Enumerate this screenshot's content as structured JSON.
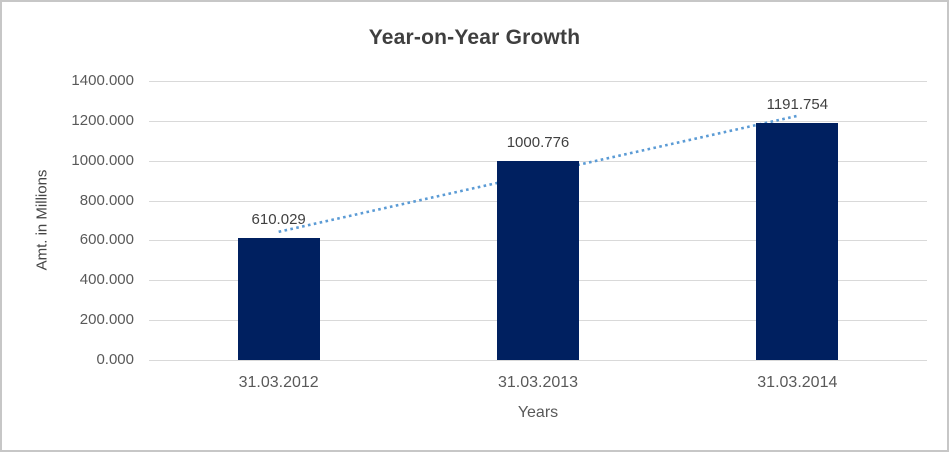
{
  "chart_data": {
    "type": "bar",
    "title": "Year-on-Year Growth",
    "xlabel": "Years",
    "ylabel": "Amt. in Millions",
    "categories": [
      "31.03.2012",
      "31.03.2013",
      "31.03.2014"
    ],
    "values": [
      610.029,
      1000.776,
      1191.754
    ],
    "data_labels": [
      "610.029",
      "1000.776",
      "1191.754"
    ],
    "y_ticks": {
      "values": [
        0,
        200,
        400,
        600,
        800,
        1000,
        1200,
        1400
      ],
      "labels": [
        "0.000",
        "200.000",
        "400.000",
        "600.000",
        "800.000",
        "1000.000",
        "1200.000",
        "1400.000"
      ]
    },
    "ylim": [
      0,
      1400
    ],
    "grid": true,
    "legend": "none",
    "trendline": {
      "type": "linear",
      "style": "dotted",
      "endpoint_values": [
        643.32,
        1225.05
      ]
    },
    "colors": {
      "bar": "#002060",
      "trendline": "#5b9bd5",
      "gridline": "#d9d9d9",
      "title_text": "#3f3f3f",
      "axis_text": "#595959",
      "data_label_text": "#404040",
      "frame_border": "#c7c7c7",
      "background": "#ffffff"
    }
  }
}
